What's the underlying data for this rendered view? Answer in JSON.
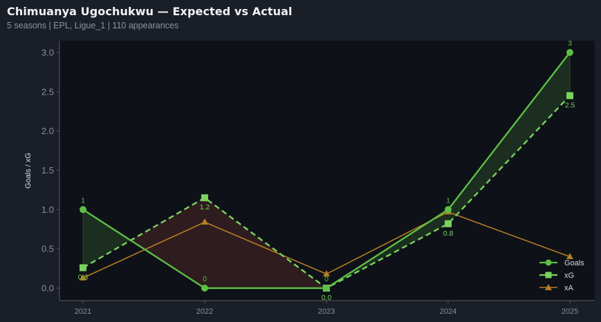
{
  "header": {
    "title": "Chimuanya Ugochukwu — Expected vs Actual",
    "subtitle": "5 seasons | EPL, Ligue_1 | 110 appearances"
  },
  "colors": {
    "page_bg": "#1a1e26",
    "plot_bg": "#0e1118",
    "goals": "#5dbf45",
    "xg": "#7ad35e",
    "xa": "#b57f22",
    "fill_over": "#1c2e20",
    "fill_under": "#2e1c1f",
    "axis": "#555a63",
    "tick_text": "#8a8f98"
  },
  "chart_data": {
    "type": "line",
    "title": "Chimuanya Ugochukwu — Expected vs Actual",
    "subtitle": "5 seasons | EPL, Ligue_1 | 110 appearances",
    "xlabel": "",
    "ylabel": "Goals / xG",
    "categories": [
      "2021",
      "2022",
      "2023",
      "2024",
      "2025"
    ],
    "ylim": [
      -0.12,
      3.15
    ],
    "yticks": [
      "0.0",
      "0.5",
      "1.0",
      "1.5",
      "2.0",
      "2.5",
      "3.0"
    ],
    "grid": false,
    "legend_position": "lower right",
    "series": [
      {
        "name": "Goals",
        "values": [
          1,
          0,
          0,
          1,
          3
        ],
        "style": "solid",
        "marker": "circle",
        "labels": [
          "1",
          "0",
          "0",
          "1",
          "3"
        ]
      },
      {
        "name": "xG",
        "values": [
          0.26,
          1.15,
          0.0,
          0.82,
          2.45
        ],
        "style": "dashed",
        "marker": "square",
        "labels": [
          "0.3",
          "1.2",
          "0.0",
          "0.8",
          "2.5"
        ]
      },
      {
        "name": "xA",
        "values": [
          0.13,
          0.84,
          0.18,
          0.97,
          0.4
        ],
        "style": "solid",
        "marker": "triangle"
      }
    ],
    "shading": "Area between Goals and xG: green where Goals > xG, red where Goals < xG"
  },
  "legend": {
    "items": [
      {
        "label": "Goals"
      },
      {
        "label": "xG"
      },
      {
        "label": "xA"
      }
    ]
  }
}
